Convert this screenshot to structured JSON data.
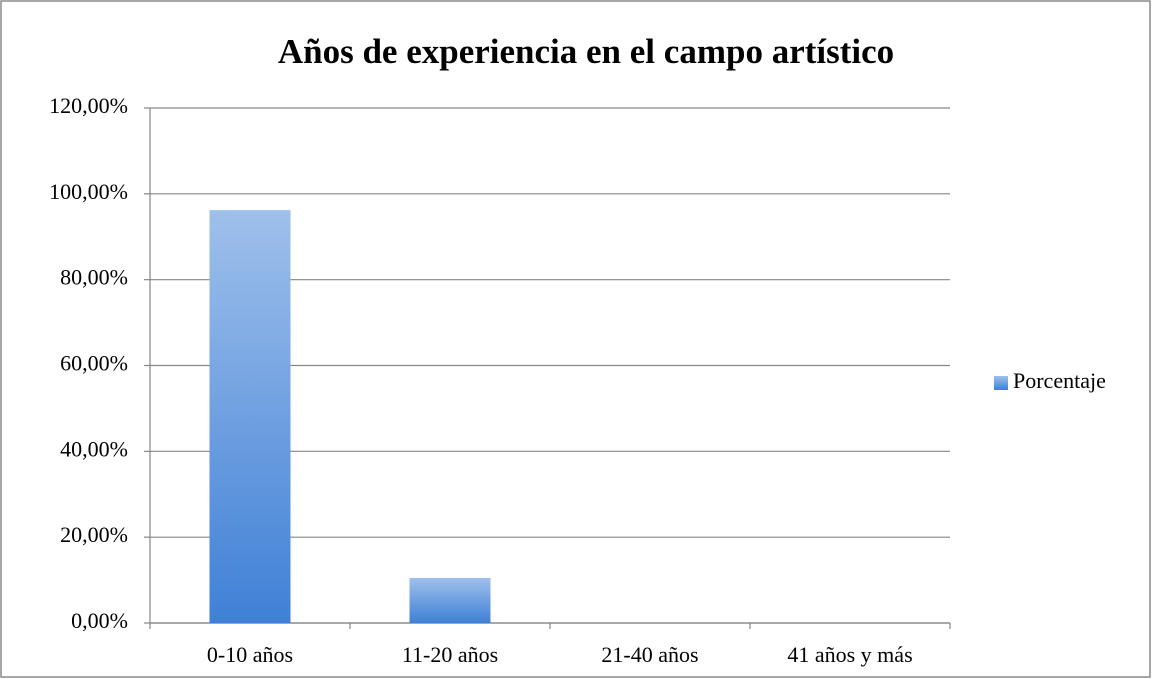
{
  "chart_data": {
    "type": "bar",
    "title": "Años de experiencia en el campo artístico",
    "categories": [
      "0-10 años",
      "11-20 años",
      "21-40 años",
      "41 años y más"
    ],
    "series": [
      {
        "name": "Porcentaje",
        "color": "#3f80d6",
        "values": [
          96.2,
          10.5,
          0,
          0
        ]
      }
    ],
    "ylim": [
      0,
      120
    ],
    "yticks": [
      {
        "value": 0,
        "label": "0,00%"
      },
      {
        "value": 20,
        "label": "20,00%"
      },
      {
        "value": 40,
        "label": "40,00%"
      },
      {
        "value": 60,
        "label": "60,00%"
      },
      {
        "value": 80,
        "label": "80,00%"
      },
      {
        "value": 100,
        "label": "100,00%"
      },
      {
        "value": 120,
        "label": "120,00%"
      }
    ],
    "grid": true,
    "legend": "right"
  }
}
